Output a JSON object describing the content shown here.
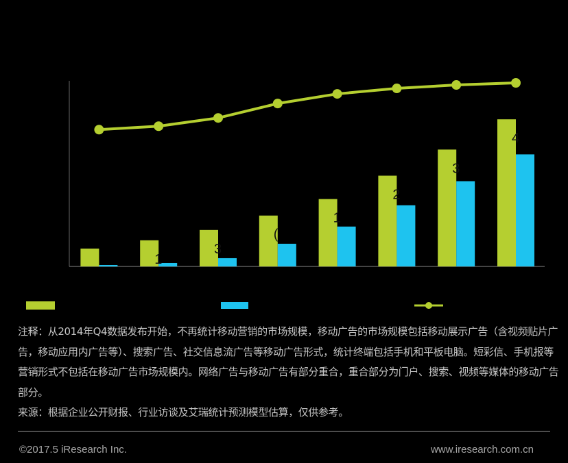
{
  "chart_data": {
    "type": "bar",
    "categories": [
      "",
      "",
      "",
      "",
      "",
      "",
      "",
      ""
    ],
    "series": [
      {
        "kind": "bar",
        "color": "#b5cf30",
        "values": [
          26,
          38,
          53,
          74,
          98,
          132,
          170,
          214
        ],
        "data_labels": [
          "",
          "1",
          "3",
          "(",
          "1",
          "2",
          "3",
          "4"
        ]
      },
      {
        "kind": "bar",
        "color": "#1ec3ef",
        "values": [
          2,
          5,
          12,
          33,
          58,
          89,
          124,
          163
        ]
      },
      {
        "kind": "line",
        "color": "#b5cf30",
        "values": [
          199,
          204,
          216,
          237,
          251,
          259,
          264,
          267
        ]
      }
    ],
    "ylim": [
      0,
      270
    ],
    "grid": false,
    "legend": "bottom"
  },
  "notes": [
    "注释：从2014年Q4数据发布开始，不再统计移动营销的市场规模，移动广告的市场规模包括移动展示广告（含视频贴片广告，移动应用内广告等）、搜索广告、社交信息流广告等移动广告形式，统计终端包括手机和平板电脑。短彩信、手机报等营销形式不包括在移动广告市场规模内。网络广告与移动广告有部分重合，重合部分为门户、搜索、视频等媒体的移动广告部分。",
    "来源：根据企业公开财报、行业访谈及艾瑞统计预测模型估算，仅供参考。"
  ],
  "footer": {
    "copyright": "©2017.5 iResearch Inc.",
    "website": "www.iresearch.com.cn"
  }
}
